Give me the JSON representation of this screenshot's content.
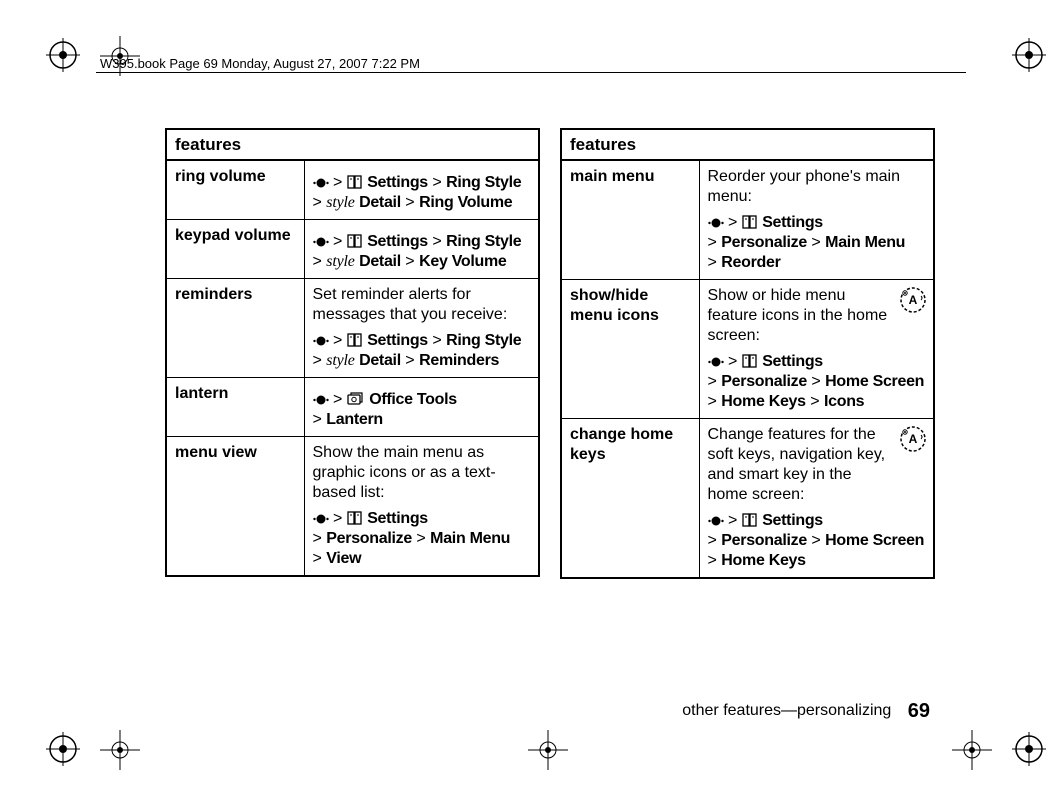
{
  "header": "W395.book  Page 69  Monday, August 27, 2007  7:22 PM",
  "tables_header": "features",
  "left": {
    "rows": [
      {
        "label": "ring volume",
        "desc": "",
        "path_pre_icon": true,
        "path_segments_a": [
          "Settings",
          "Ring Style"
        ],
        "style_word": "style",
        "path_segments_b": [
          "Detail",
          "Ring Volume"
        ]
      },
      {
        "label": "keypad volume",
        "desc": "",
        "path_pre_icon": true,
        "path_segments_a": [
          "Settings",
          "Ring Style"
        ],
        "style_word": "style",
        "path_segments_b": [
          "Detail",
          "Key Volume"
        ]
      },
      {
        "label": "reminders",
        "desc": "Set reminder alerts for messages that you receive:",
        "path_pre_icon": true,
        "path_segments_a": [
          "Settings",
          "Ring Style"
        ],
        "style_word": "style",
        "path_segments_b": [
          "Detail",
          "Reminders"
        ]
      },
      {
        "label": "lantern",
        "desc": "",
        "path_pre_icon": true,
        "icon_variant": "office",
        "path_segments_a": [
          "Office Tools",
          "Lantern"
        ],
        "style_word": "",
        "path_segments_b": []
      },
      {
        "label": "menu view",
        "desc": "Show the main menu as graphic icons or as a text-based list:",
        "path_pre_icon": true,
        "path_segments_a": [
          "Settings",
          "Personalize"
        ],
        "style_word": "",
        "path_segments_b": [
          "Main Menu",
          "View"
        ]
      }
    ]
  },
  "right": {
    "rows": [
      {
        "label": "main menu",
        "desc": "Reorder your phone's main menu:",
        "path_pre_icon": true,
        "path_segments_a": [
          "Settings",
          "Personalize"
        ],
        "style_word": "",
        "path_segments_b": [
          "Main Menu",
          "Reorder"
        ]
      },
      {
        "label": "show/hide menu icons",
        "desc": "Show or hide menu feature icons in the home screen:",
        "badge": true,
        "path_pre_icon": true,
        "path_segments_a": [
          "Settings",
          "Personalize"
        ],
        "style_word": "",
        "path_segments_b": [
          "Home Screen",
          "Home Keys",
          "Icons"
        ]
      },
      {
        "label": "change home keys",
        "desc": "Change features for the soft keys, navigation key, and smart key in the home screen:",
        "badge": true,
        "path_pre_icon": true,
        "path_segments_a": [
          "Settings",
          "Personalize"
        ],
        "style_word": "",
        "path_segments_b": [
          "Home Screen",
          "Home Keys"
        ]
      }
    ]
  },
  "footer": {
    "section": "other features—personalizing",
    "page": "69"
  },
  "colors": {
    "text": "#000000",
    "bg": "#ffffff",
    "rule": "#000000"
  }
}
